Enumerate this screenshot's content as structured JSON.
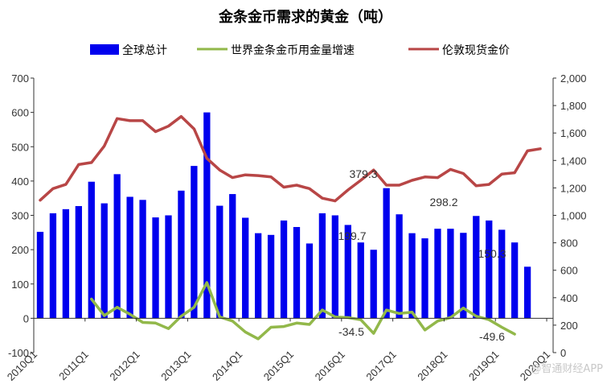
{
  "chart_data": {
    "type": "bar",
    "title": "金条金币需求的黄金（吨）",
    "legend": [
      "全球总计",
      "世界金条金币用金量增速",
      "伦敦现货金价"
    ],
    "legend_position": "top",
    "colors": {
      "bars": "#0000ee",
      "growth": "#92b84a",
      "gold_price": "#b84646"
    },
    "y_left": {
      "min": -100,
      "max": 700,
      "ticks": [
        "-100",
        "0",
        "100",
        "200",
        "300",
        "400",
        "500",
        "600",
        "700"
      ]
    },
    "y_right": {
      "min": 0,
      "max": 2000,
      "ticks": [
        "0",
        "200",
        "400",
        "600",
        "800",
        "1,000",
        "1,200",
        "1,400",
        "1,600",
        "1,800",
        "2,000"
      ]
    },
    "x_tick_labels": [
      "2010Q1",
      "2011Q1",
      "2012Q1",
      "2013Q1",
      "2014Q1",
      "2015Q1",
      "2016Q1",
      "2017Q1",
      "2018Q1",
      "2019Q1",
      "2020Q1"
    ],
    "quarters": [
      "2010Q1",
      "2010Q2",
      "2010Q3",
      "2010Q4",
      "2011Q1",
      "2011Q2",
      "2011Q3",
      "2011Q4",
      "2012Q1",
      "2012Q2",
      "2012Q3",
      "2012Q4",
      "2013Q1",
      "2013Q2",
      "2013Q3",
      "2013Q4",
      "2014Q1",
      "2014Q2",
      "2014Q3",
      "2014Q4",
      "2015Q1",
      "2015Q2",
      "2015Q3",
      "2015Q4",
      "2016Q1",
      "2016Q2",
      "2016Q3",
      "2016Q4",
      "2017Q1",
      "2017Q2",
      "2017Q3",
      "2017Q4",
      "2018Q1",
      "2018Q2",
      "2018Q3",
      "2018Q4",
      "2019Q1",
      "2019Q2",
      "2019Q3",
      "2019Q4",
      "2020Q1"
    ],
    "series": [
      {
        "name": "全球总计",
        "axis": "left",
        "type": "bar",
        "values": [
          252,
          306,
          318,
          327,
          398,
          335,
          420,
          354,
          345,
          294,
          300,
          372,
          444,
          600,
          328,
          362,
          293,
          248,
          243,
          285,
          266,
          218,
          306,
          300,
          272,
          221,
          199.7,
          379.3,
          303,
          248,
          233,
          261,
          261,
          249,
          298.2,
          285,
          258,
          221,
          150.3,
          null,
          null
        ]
      },
      {
        "name": "世界金条金币用金量增速",
        "axis": "right",
        "type": "line",
        "values": [
          null,
          null,
          null,
          null,
          390,
          270,
          330,
          280,
          220,
          215,
          175,
          265,
          330,
          510,
          260,
          230,
          150,
          100,
          185,
          190,
          215,
          205,
          310,
          260,
          255,
          240,
          140,
          310,
          285,
          295,
          165,
          230,
          255,
          325,
          265,
          240,
          185,
          135,
          null,
          null,
          null
        ]
      },
      {
        "name": "伦敦现货金价",
        "axis": "right",
        "type": "line",
        "values": [
          1110,
          1195,
          1225,
          1370,
          1385,
          1505,
          1705,
          1690,
          1690,
          1610,
          1650,
          1720,
          1630,
          1415,
          1330,
          1275,
          1295,
          1290,
          1280,
          1205,
          1220,
          1195,
          1125,
          1105,
          1185,
          1255,
          1330,
          1220,
          1220,
          1255,
          1280,
          1275,
          1335,
          1305,
          1215,
          1225,
          1300,
          1310,
          1470,
          1485,
          null
        ]
      }
    ],
    "annotations": [
      "379.3",
      "199.7",
      "298.2",
      "150.3",
      "-34.5",
      "-49.6"
    ],
    "watermark": "@智通财经APP"
  }
}
